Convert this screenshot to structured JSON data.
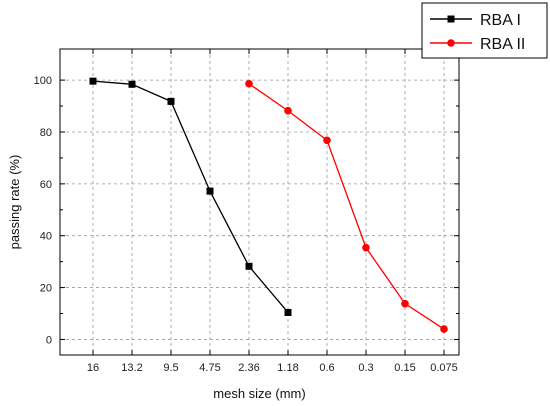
{
  "chart_data": {
    "type": "line",
    "xlabel": "mesh size (mm)",
    "ylabel": "passing rate (%)",
    "categories": [
      "16",
      "13.2",
      "9.5",
      "4.75",
      "2.36",
      "1.18",
      "0.6",
      "0.3",
      "0.15",
      "0.075"
    ],
    "ylim": [
      -6,
      112
    ],
    "yticks": [
      0,
      20,
      40,
      60,
      80,
      100
    ],
    "grid": true,
    "legend_position": "top-right, outside plot",
    "series": [
      {
        "name": "RBA I",
        "color": "#000000",
        "marker": "square",
        "values": [
          99.6,
          98.4,
          91.8,
          57.2,
          28.2,
          10.4,
          null,
          null,
          null,
          null
        ]
      },
      {
        "name": "RBA II",
        "color": "#ff0000",
        "marker": "circle",
        "values": [
          null,
          null,
          null,
          null,
          98.6,
          88.2,
          76.8,
          35.4,
          13.8,
          4.0
        ]
      }
    ]
  }
}
